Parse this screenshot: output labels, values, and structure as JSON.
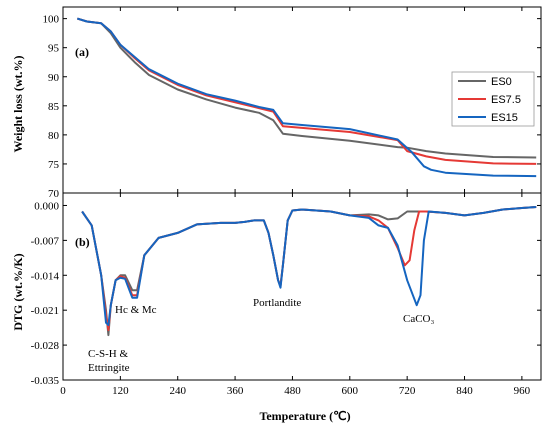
{
  "chart_data": [
    {
      "panel_label": "(a)",
      "type": "line",
      "ylabel": "Weight loss (wt.%)",
      "ylim": [
        70,
        102
      ],
      "xlim": [
        0,
        1000
      ],
      "yticks": [
        "70",
        "75",
        "80",
        "85",
        "90",
        "95",
        "100"
      ],
      "yticks_values": [
        70,
        75,
        80,
        85,
        90,
        95,
        100
      ],
      "legend": "right",
      "series": [
        {
          "name": "ES0",
          "color": "#666666",
          "x": [
            30,
            50,
            80,
            100,
            120,
            150,
            180,
            240,
            300,
            360,
            410,
            440,
            460,
            500,
            600,
            700,
            720,
            760,
            800,
            900,
            990
          ],
          "y": [
            100,
            99.5,
            99.2,
            97.5,
            95,
            92.5,
            90.3,
            87.8,
            86.1,
            84.7,
            83.8,
            82.5,
            80.2,
            79.8,
            79.0,
            77.9,
            77.8,
            77.2,
            76.8,
            76.2,
            76.1
          ]
        },
        {
          "name": "ES7.5",
          "color": "#e53935",
          "x": [
            30,
            50,
            80,
            100,
            120,
            150,
            180,
            240,
            300,
            360,
            410,
            440,
            460,
            500,
            600,
            700,
            720,
            760,
            800,
            900,
            990
          ],
          "y": [
            100,
            99.5,
            99.2,
            97.8,
            95.5,
            93.2,
            91.1,
            88.6,
            86.8,
            85.6,
            84.6,
            84.0,
            81.5,
            81.2,
            80.5,
            79.1,
            77.2,
            76.3,
            75.7,
            75.1,
            75.0
          ]
        },
        {
          "name": "ES15",
          "color": "#1565c0",
          "x": [
            30,
            50,
            80,
            100,
            120,
            150,
            180,
            240,
            300,
            360,
            410,
            440,
            460,
            500,
            600,
            700,
            730,
            755,
            770,
            800,
            900,
            990
          ],
          "y": [
            100,
            99.5,
            99.2,
            97.8,
            95.5,
            93.4,
            91.3,
            88.8,
            87.0,
            85.9,
            84.8,
            84.3,
            82.0,
            81.7,
            81.0,
            79.2,
            77.0,
            74.6,
            74.0,
            73.5,
            73.0,
            72.9
          ]
        }
      ]
    },
    {
      "panel_label": "(b)",
      "type": "line",
      "ylabel": "DTG (wt.%/K)",
      "xlabel": "Temperature (℃)",
      "ylim": [
        -0.035,
        0.0025
      ],
      "xlim": [
        0,
        1000
      ],
      "xticks": [
        "0",
        "120",
        "240",
        "360",
        "480",
        "600",
        "720",
        "840",
        "960"
      ],
      "xticks_values": [
        0,
        120,
        240,
        360,
        480,
        600,
        720,
        840,
        960
      ],
      "yticks": [
        "0.000",
        "-0.007",
        "-0.014",
        "-0.021",
        "-0.028",
        "-0.035"
      ],
      "yticks_values": [
        0,
        -0.007,
        -0.014,
        -0.021,
        -0.028,
        -0.035
      ],
      "annotations": [
        "Hc & Mc",
        "C-S-H &",
        "Ettringite",
        "Portlandite",
        "CaCO₃"
      ],
      "series": [
        {
          "name": "ES0",
          "color": "#666666",
          "x": [
            40,
            60,
            80,
            90,
            95,
            100,
            110,
            120,
            130,
            145,
            155,
            170,
            200,
            240,
            280,
            330,
            360,
            380,
            400,
            420,
            430,
            440,
            450,
            455,
            460,
            470,
            480,
            500,
            560,
            600,
            640,
            660,
            680,
            700,
            720,
            760,
            800,
            840,
            880,
            920,
            960,
            990
          ],
          "y": [
            -0.0012,
            -0.004,
            -0.014,
            -0.021,
            -0.026,
            -0.02,
            -0.015,
            -0.014,
            -0.014,
            -0.017,
            -0.017,
            -0.01,
            -0.0065,
            -0.0055,
            -0.0038,
            -0.0035,
            -0.0035,
            -0.0033,
            -0.003,
            -0.003,
            -0.0055,
            -0.01,
            -0.015,
            -0.016,
            -0.012,
            -0.003,
            -0.001,
            -0.0008,
            -0.0012,
            -0.002,
            -0.0018,
            -0.002,
            -0.0028,
            -0.0026,
            -0.0012,
            -0.0012,
            -0.0015,
            -0.002,
            -0.0015,
            -0.0008,
            -0.0005,
            -0.0003
          ]
        },
        {
          "name": "ES7.5",
          "color": "#e53935",
          "x": [
            40,
            60,
            80,
            90,
            95,
            100,
            110,
            120,
            130,
            145,
            155,
            170,
            200,
            240,
            280,
            330,
            360,
            380,
            400,
            420,
            430,
            440,
            450,
            455,
            460,
            470,
            480,
            500,
            560,
            600,
            640,
            660,
            680,
            700,
            715,
            725,
            735,
            745,
            760,
            800,
            840,
            880,
            920,
            960,
            990
          ],
          "y": [
            -0.0012,
            -0.004,
            -0.014,
            -0.022,
            -0.025,
            -0.02,
            -0.015,
            -0.0142,
            -0.0145,
            -0.018,
            -0.018,
            -0.01,
            -0.0065,
            -0.0055,
            -0.0038,
            -0.0035,
            -0.0035,
            -0.0033,
            -0.003,
            -0.003,
            -0.0055,
            -0.01,
            -0.015,
            -0.0162,
            -0.012,
            -0.003,
            -0.001,
            -0.0008,
            -0.0012,
            -0.002,
            -0.0022,
            -0.003,
            -0.0045,
            -0.0085,
            -0.012,
            -0.011,
            -0.005,
            -0.0012,
            -0.0012,
            -0.0015,
            -0.002,
            -0.0015,
            -0.0008,
            -0.0005,
            -0.0003
          ]
        },
        {
          "name": "ES15",
          "color": "#1565c0",
          "x": [
            40,
            60,
            80,
            90,
            95,
            100,
            110,
            120,
            130,
            145,
            155,
            170,
            200,
            240,
            280,
            330,
            360,
            380,
            400,
            420,
            430,
            440,
            450,
            455,
            460,
            470,
            480,
            500,
            560,
            600,
            640,
            660,
            680,
            700,
            720,
            740,
            748,
            755,
            765,
            800,
            840,
            880,
            920,
            960,
            990
          ],
          "y": [
            -0.0012,
            -0.004,
            -0.014,
            -0.0235,
            -0.024,
            -0.02,
            -0.015,
            -0.0145,
            -0.0147,
            -0.0185,
            -0.0185,
            -0.01,
            -0.0065,
            -0.0055,
            -0.0038,
            -0.0035,
            -0.0035,
            -0.0033,
            -0.003,
            -0.003,
            -0.0055,
            -0.01,
            -0.015,
            -0.0165,
            -0.012,
            -0.003,
            -0.001,
            -0.0008,
            -0.0012,
            -0.002,
            -0.0025,
            -0.004,
            -0.0045,
            -0.008,
            -0.015,
            -0.02,
            -0.018,
            -0.007,
            -0.0012,
            -0.0015,
            -0.002,
            -0.0015,
            -0.0008,
            -0.0005,
            -0.0003
          ]
        }
      ]
    }
  ]
}
